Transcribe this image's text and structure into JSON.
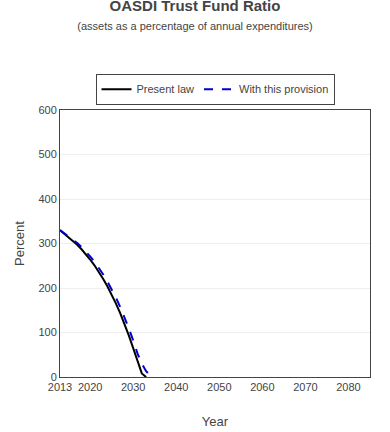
{
  "chart_data": {
    "type": "line",
    "title": "OASDI Trust Fund Ratio",
    "subtitle": "(assets as a percentage of annual expenditures)",
    "x_label": "Year",
    "y_label": "Percent",
    "series": [
      {
        "name": "Present law",
        "color": "#000000",
        "line_style": "solid",
        "x": [
          2013,
          2014,
          2015,
          2016,
          2017,
          2018,
          2019,
          2020,
          2021,
          2022,
          2023,
          2024,
          2025,
          2026,
          2027,
          2028,
          2029,
          2030,
          2031,
          2032,
          2033
        ],
        "values": [
          330,
          322,
          314,
          306,
          297,
          287,
          276,
          264,
          251,
          237,
          221,
          204,
          185,
          165,
          143,
          119,
          93,
          65,
          36,
          8,
          0
        ]
      },
      {
        "name": "With this provision",
        "color": "#0000cc",
        "line_style": "dashed",
        "x": [
          2013,
          2014,
          2015,
          2016,
          2017,
          2018,
          2019,
          2020,
          2021,
          2022,
          2023,
          2024,
          2025,
          2026,
          2027,
          2028,
          2029,
          2030,
          2031,
          2032,
          2033,
          2034,
          2035
        ],
        "values": [
          330,
          323,
          316,
          309,
          301,
          292,
          282,
          271,
          259,
          246,
          231,
          215,
          197,
          178,
          157,
          134,
          109,
          82,
          53,
          30,
          13,
          3,
          0
        ]
      }
    ],
    "xlim": [
      2013,
      2085
    ],
    "xticks": [
      2013,
      2020,
      2030,
      2040,
      2050,
      2060,
      2070,
      2080
    ],
    "ylim": [
      0,
      600
    ],
    "yticks": [
      0,
      100,
      200,
      300,
      400,
      500,
      600
    ],
    "grid": true,
    "legend": "top"
  }
}
